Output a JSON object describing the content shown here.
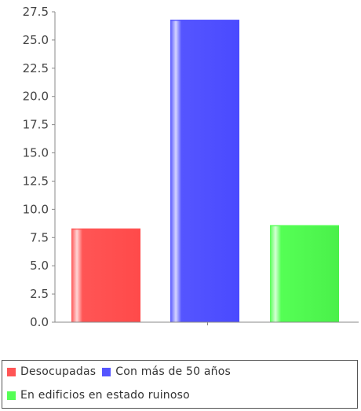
{
  "chart_data": {
    "type": "bar",
    "title": "",
    "xlabel": "",
    "ylabel": "",
    "ylim": [
      0,
      27.5
    ],
    "yticks": [
      "0.0",
      "2.5",
      "5.0",
      "7.5",
      "10.0",
      "12.5",
      "15.0",
      "17.5",
      "20.0",
      "22.5",
      "25.0",
      "27.5"
    ],
    "grid": false,
    "legend_position": "bottom",
    "series": [
      {
        "name": "Desocupadas",
        "value": 8.3,
        "color": "#ff5555"
      },
      {
        "name": "Con más de 50 años",
        "value": 26.8,
        "color": "#5555ff"
      },
      {
        "name": "En edificios en estado ruinoso",
        "value": 8.6,
        "color": "#55ff55"
      }
    ]
  },
  "legend": {
    "items": [
      {
        "label": "Desocupadas",
        "color": "#ff5555"
      },
      {
        "label": "Con más de 50 años",
        "color": "#5555ff"
      },
      {
        "label": "En edificios en estado ruinoso",
        "color": "#55ff55"
      }
    ]
  }
}
